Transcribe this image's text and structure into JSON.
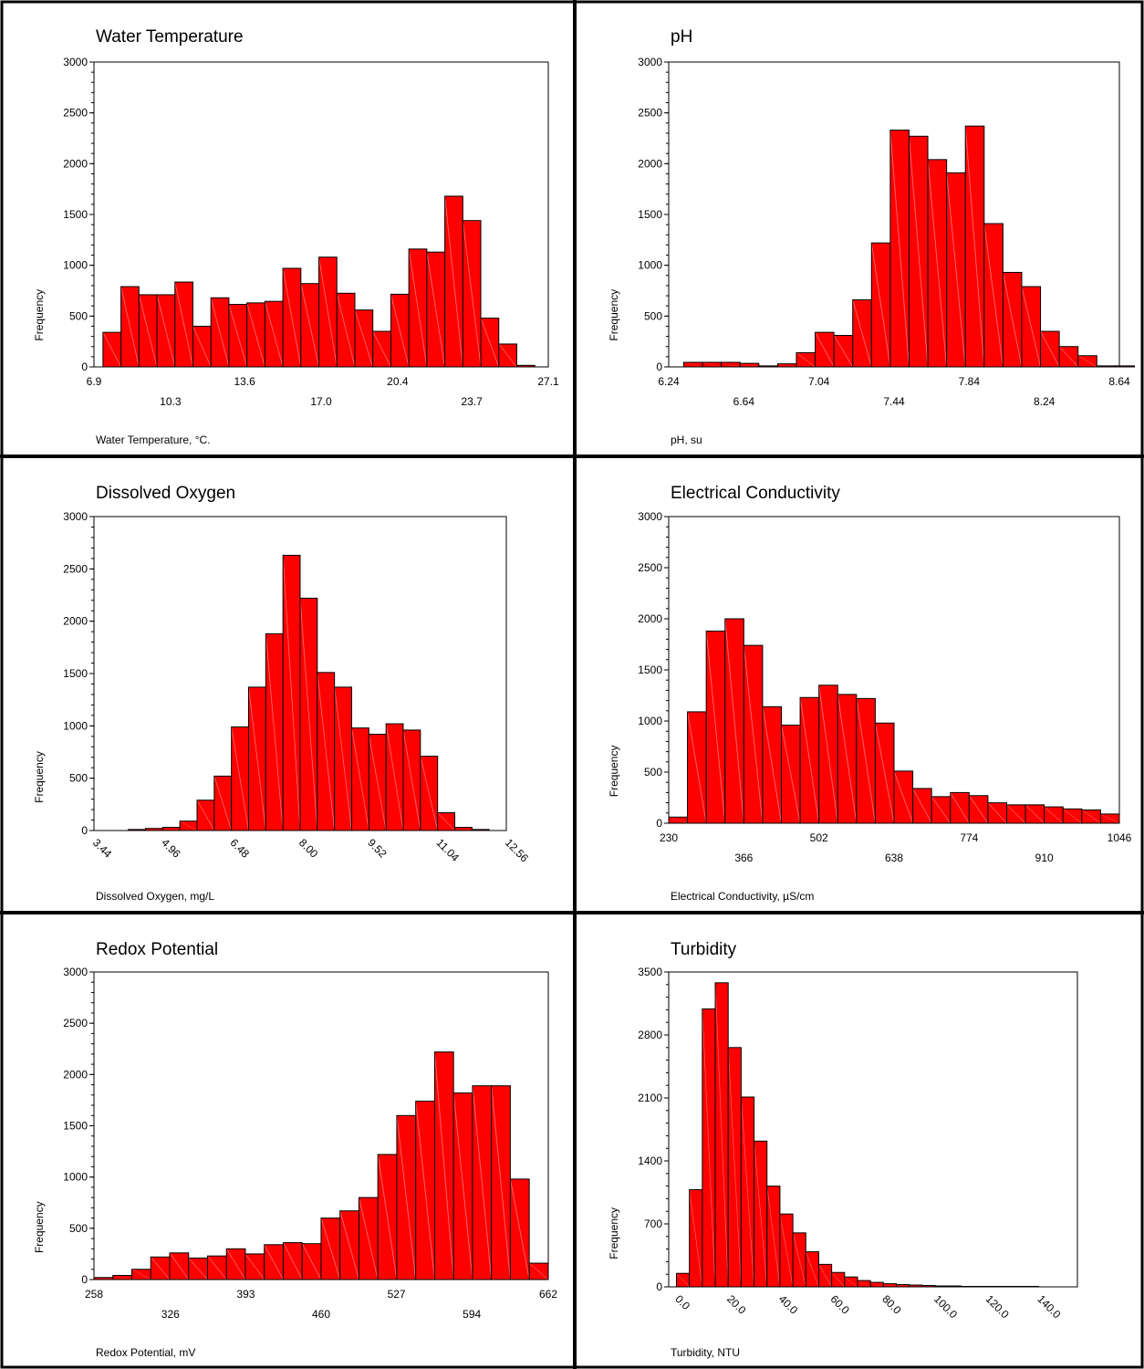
{
  "panels": [
    {
      "title": "Water Temperature",
      "xlabel": "Water Temperature, °C.",
      "ylabel": "Frequency",
      "chart_data": {
        "type": "bar",
        "title": "Water Temperature",
        "xlabel": "Water Temperature, °C.",
        "ylabel": "Frequency",
        "ylim": [
          0,
          3000
        ],
        "yticks": [
          0,
          500,
          1000,
          1500,
          2000,
          2500,
          3000
        ],
        "xlim": [
          6.9,
          27.1
        ],
        "xticks": [
          "6.9",
          "10.3",
          "13.6",
          "17.0",
          "20.4",
          "23.7",
          "27.1"
        ],
        "xtick_rotate": false,
        "bin_width": 0.8,
        "bin_start": 7.3,
        "values": [
          340,
          790,
          710,
          710,
          835,
          400,
          680,
          615,
          630,
          645,
          970,
          820,
          1080,
          725,
          560,
          350,
          715,
          1160,
          1130,
          1680,
          1440,
          480,
          225,
          15
        ],
        "bar_color": "#ff0000"
      }
    },
    {
      "title": "pH",
      "xlabel": "pH, su",
      "ylabel": "Frequency",
      "chart_data": {
        "type": "bar",
        "title": "pH",
        "xlabel": "pH, su",
        "ylabel": "Frequency",
        "ylim": [
          0,
          3000
        ],
        "yticks": [
          0,
          500,
          1000,
          1500,
          2000,
          2500,
          3000
        ],
        "xlim": [
          6.24,
          8.64
        ],
        "xticks": [
          "6.24",
          "6.64",
          "7.04",
          "7.44",
          "7.84",
          "8.24",
          "8.64"
        ],
        "xtick_rotate": false,
        "bin_width": 0.1,
        "bin_start": 6.32,
        "values": [
          45,
          45,
          45,
          35,
          10,
          30,
          140,
          340,
          310,
          660,
          1220,
          2330,
          2270,
          2040,
          1910,
          2370,
          1410,
          930,
          790,
          350,
          200,
          110,
          10,
          10
        ],
        "bar_color": "#ff0000"
      }
    },
    {
      "title": "Dissolved Oxygen",
      "xlabel": "Dissolved Oxygen, mg/L",
      "ylabel": "Frequency",
      "chart_data": {
        "type": "bar",
        "title": "Dissolved Oxygen",
        "xlabel": "Dissolved Oxygen, mg/L",
        "ylabel": "Frequency",
        "ylim": [
          0,
          3000
        ],
        "yticks": [
          0,
          500,
          1000,
          1500,
          2000,
          2500,
          3000
        ],
        "xlim": [
          3.44,
          12.56
        ],
        "xticks": [
          "3.44",
          "4.96",
          "6.48",
          "8.00",
          "9.52",
          "11.04",
          "12.56"
        ],
        "xtick_rotate": true,
        "bin_width": 0.38,
        "bin_start": 4.2,
        "values": [
          10,
          20,
          30,
          90,
          290,
          520,
          990,
          1370,
          1880,
          2630,
          2220,
          1510,
          1370,
          980,
          920,
          1020,
          960,
          710,
          170,
          30,
          10
        ],
        "bar_color": "#ff0000"
      }
    },
    {
      "title": "Electrical Conductivity",
      "xlabel": "Electrical Conductivity, µS/cm",
      "ylabel": "Frequency",
      "chart_data": {
        "type": "bar",
        "title": "Electrical Conductivity",
        "xlabel": "Electrical Conductivity, µS/cm",
        "ylabel": "Frequency",
        "ylim": [
          0,
          3000
        ],
        "yticks": [
          0,
          500,
          1000,
          1500,
          2000,
          2500,
          3000
        ],
        "xlim": [
          230,
          1046
        ],
        "xticks": [
          "230",
          "366",
          "502",
          "638",
          "774",
          "910",
          "1046"
        ],
        "xtick_rotate": false,
        "bin_width": 34,
        "bin_start": 230,
        "values": [
          60,
          1090,
          1880,
          2000,
          1740,
          1140,
          960,
          1230,
          1350,
          1260,
          1220,
          980,
          510,
          340,
          260,
          300,
          270,
          200,
          180,
          180,
          160,
          140,
          130,
          90
        ],
        "bar_color": "#ff0000"
      }
    },
    {
      "title": "Redox Potential",
      "xlabel": "Redox Potential, mV",
      "ylabel": "Frequency",
      "chart_data": {
        "type": "bar",
        "title": "Redox Potential",
        "xlabel": "Redox Potential, mV",
        "ylabel": "Frequency",
        "ylim": [
          0,
          3000
        ],
        "yticks": [
          0,
          500,
          1000,
          1500,
          2000,
          2500,
          3000
        ],
        "xlim": [
          258,
          662
        ],
        "xticks": [
          "258",
          "326",
          "393",
          "460",
          "527",
          "594",
          "662"
        ],
        "xtick_rotate": false,
        "bin_width": 16.83,
        "bin_start": 258,
        "values": [
          20,
          40,
          100,
          220,
          260,
          210,
          230,
          300,
          250,
          340,
          360,
          350,
          600,
          670,
          800,
          1220,
          1600,
          1740,
          2220,
          1820,
          1890,
          1890,
          980,
          160
        ],
        "bar_color": "#ff0000"
      }
    },
    {
      "title": "Turbidity",
      "xlabel": "Turbidity, NTU",
      "ylabel": "Frequency",
      "chart_data": {
        "type": "bar",
        "title": "Turbidity",
        "xlabel": "Turbidity, NTU",
        "ylabel": "Frequency",
        "ylim": [
          0,
          3500
        ],
        "yticks": [
          0,
          700,
          1400,
          2100,
          2800,
          3500
        ],
        "xlim": [
          -3,
          155
        ],
        "xticks": [
          "0.0",
          "20.0",
          "40.0",
          "60.0",
          "80.0",
          "100.0",
          "120.0",
          "140.0"
        ],
        "xtick_values": [
          0,
          20,
          40,
          60,
          80,
          100,
          120,
          140
        ],
        "xtick_rotate": true,
        "bin_width": 5,
        "bin_start": 0,
        "values": [
          150,
          1080,
          3090,
          3380,
          2660,
          2110,
          1620,
          1120,
          810,
          600,
          390,
          250,
          160,
          110,
          70,
          50,
          35,
          25,
          20,
          15,
          10,
          10,
          5,
          5,
          5,
          5,
          5,
          5
        ],
        "bar_color": "#ff0000"
      }
    }
  ]
}
